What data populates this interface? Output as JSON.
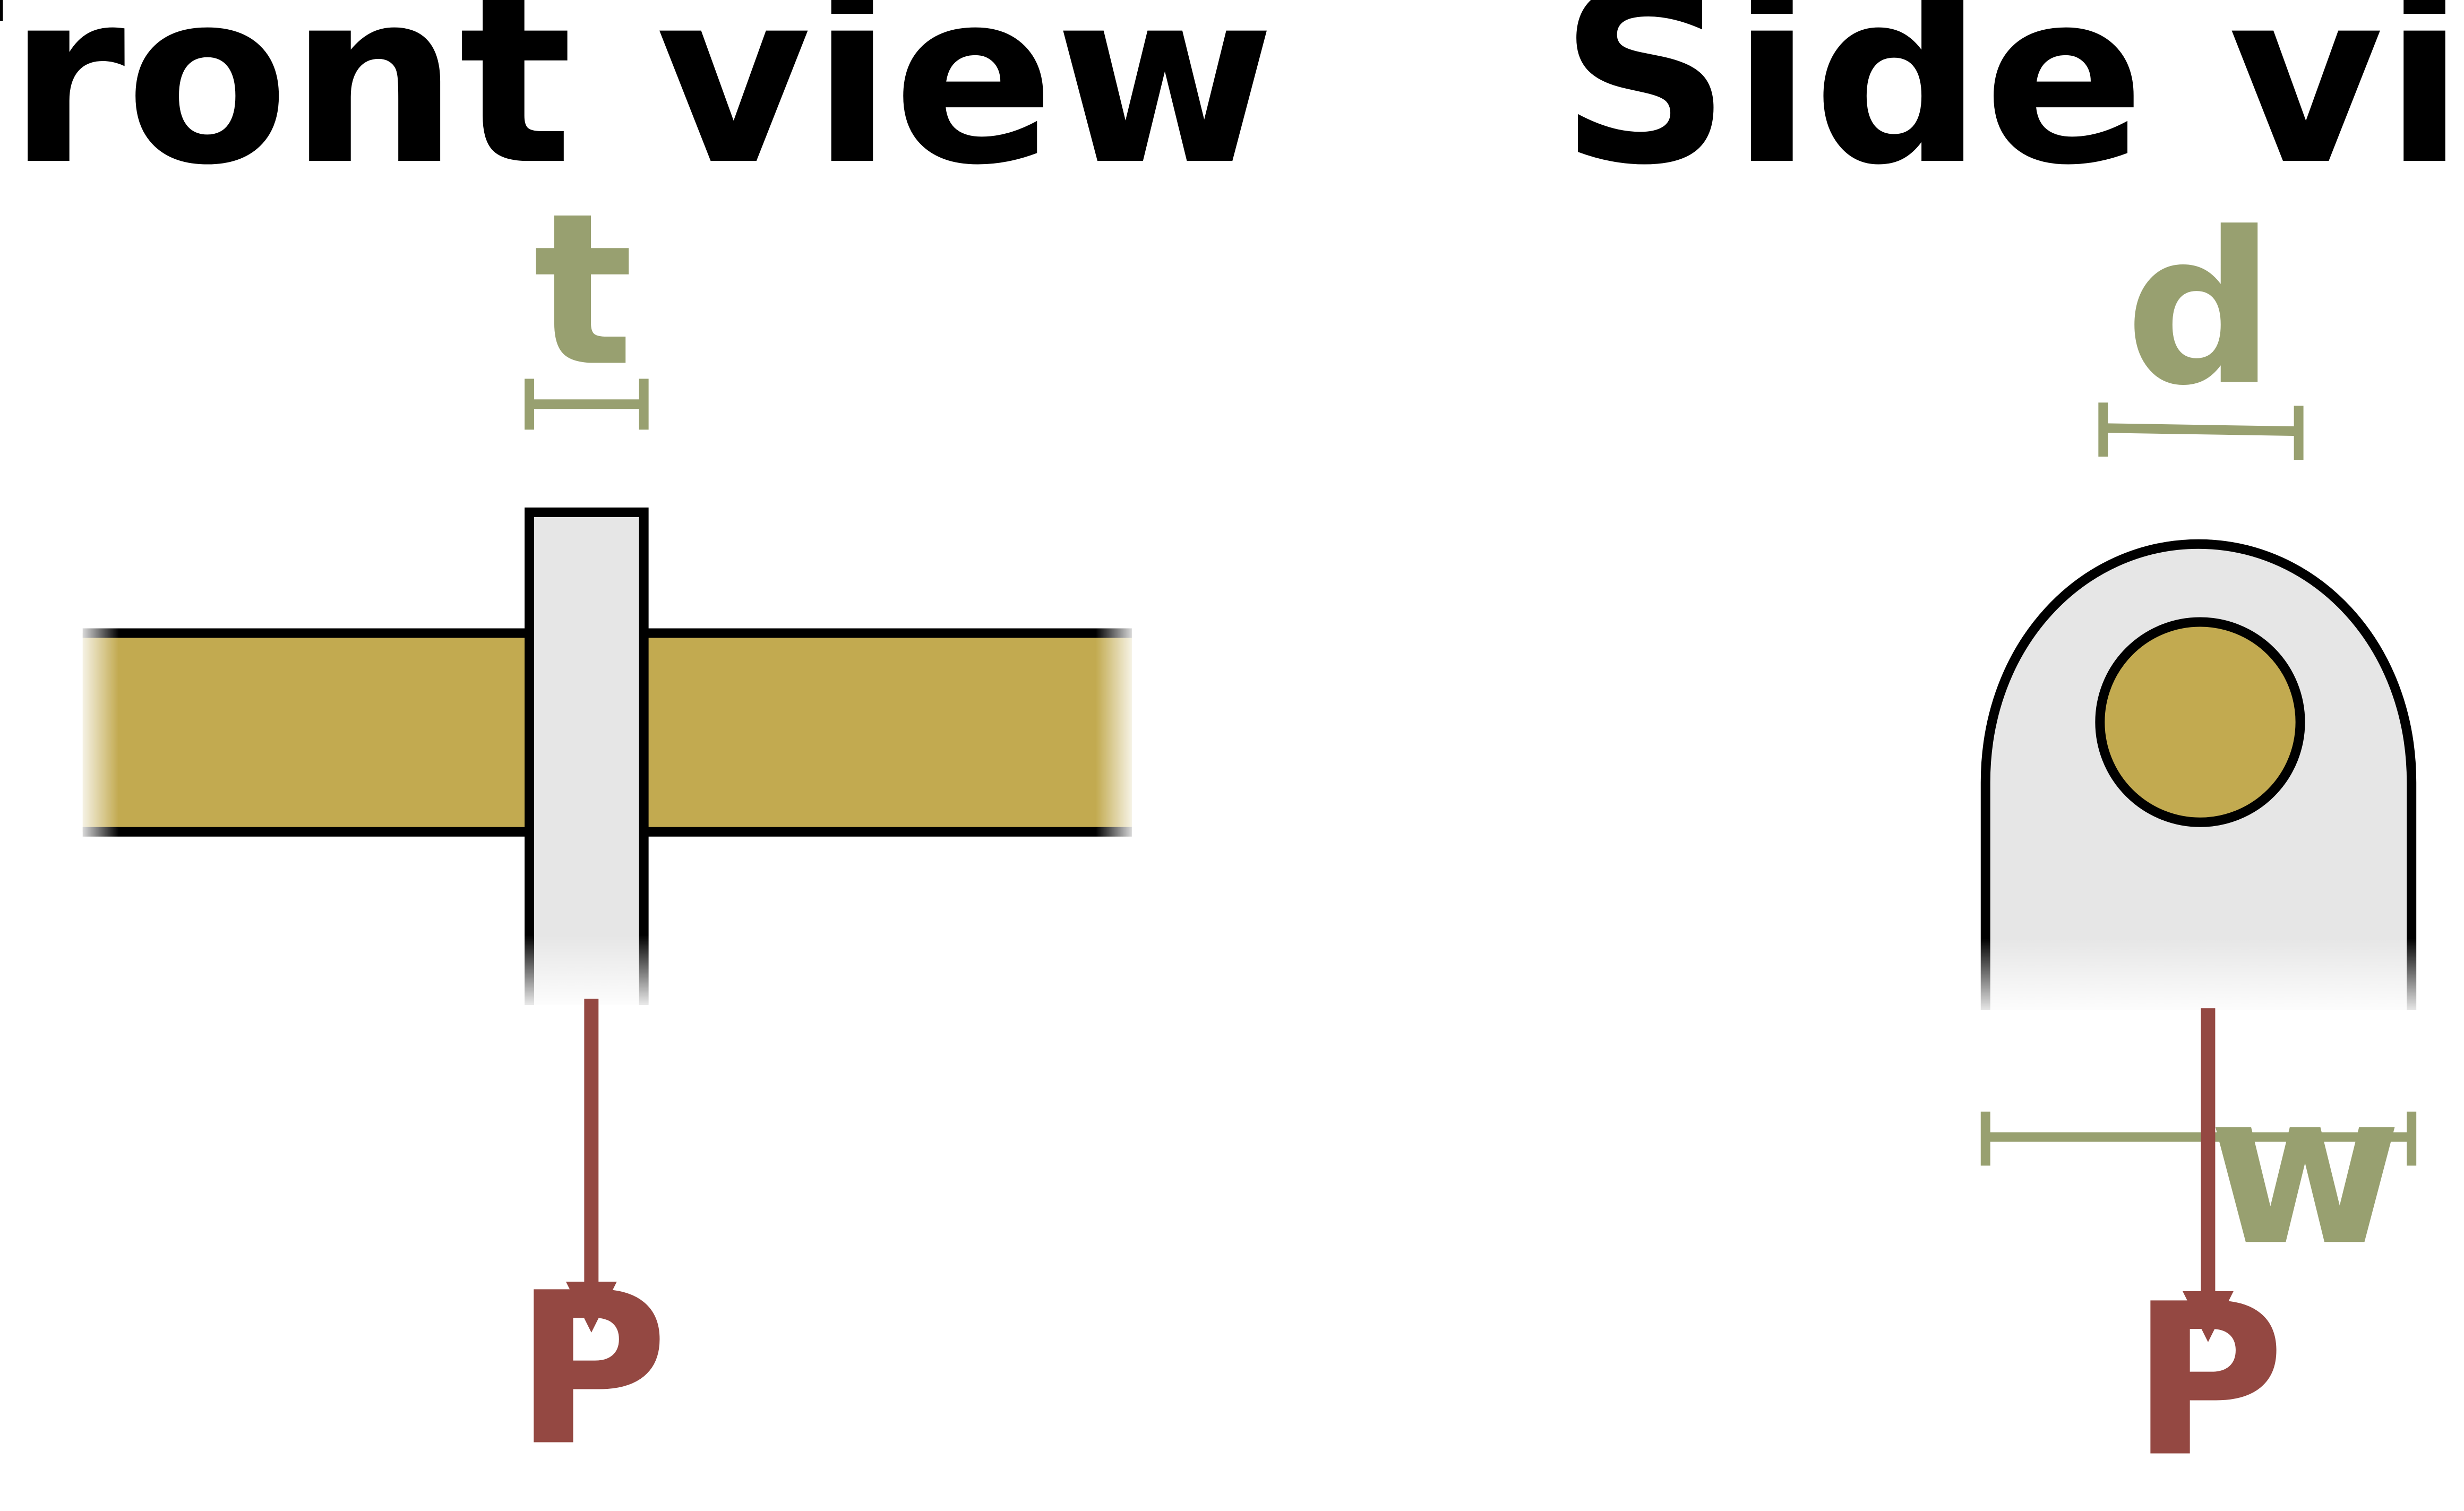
{
  "colors": {
    "rod": "#C2AA50",
    "plate": "#E6E6E6",
    "outline": "#000000",
    "dimension": "#98A070",
    "force": "#944842"
  },
  "front_view": {
    "title": "Front view",
    "thickness_label": "t",
    "force_label": "P"
  },
  "side_view": {
    "title": "Side view",
    "diameter_label": "d",
    "width_label": "w",
    "force_label": "P"
  }
}
